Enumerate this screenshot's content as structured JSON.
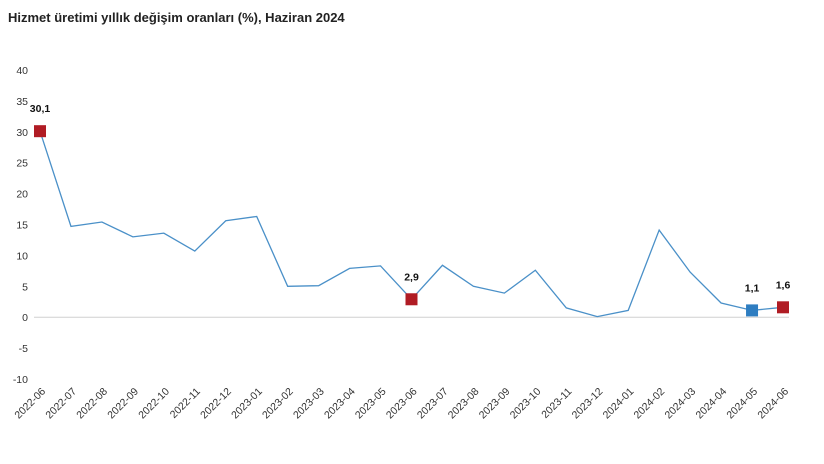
{
  "chart_data": {
    "type": "line",
    "title": "Hizmet üretimi yıllık değişim oranları (%), Haziran 2024",
    "xlabel": "",
    "ylabel": "",
    "ylim": [
      -10,
      40
    ],
    "yticks": [
      -10,
      -5,
      0,
      5,
      10,
      15,
      20,
      25,
      30,
      35,
      40
    ],
    "grid": false,
    "legend": "none",
    "colors": {
      "line": "#4a90c8",
      "marker_red": "#b01c24",
      "marker_blue": "#2e7dc1",
      "axis": "#d0d0d0"
    },
    "categories": [
      "2022-06",
      "2022-07",
      "2022-08",
      "2022-09",
      "2022-10",
      "2022-11",
      "2022-12",
      "2023-01",
      "2023-02",
      "2023-03",
      "2023-04",
      "2023-05",
      "2023-06",
      "2023-07",
      "2023-08",
      "2023-09",
      "2023-10",
      "2023-11",
      "2023-12",
      "2024-01",
      "2024-02",
      "2024-03",
      "2024-04",
      "2024-05",
      "2024-06"
    ],
    "series": [
      {
        "values": [
          30.1,
          14.7,
          15.4,
          13.0,
          13.6,
          10.7,
          15.6,
          16.3,
          5.0,
          5.1,
          7.9,
          8.3,
          2.9,
          8.4,
          5.0,
          3.9,
          7.6,
          1.5,
          0.1,
          1.1,
          14.1,
          7.3,
          2.3,
          1.1,
          1.6
        ]
      }
    ],
    "annotations": [
      {
        "index": 0,
        "label": "30,1",
        "marker": "red"
      },
      {
        "index": 12,
        "label": "2,9",
        "marker": "red"
      },
      {
        "index": 23,
        "label": "1,1",
        "marker": "blue"
      },
      {
        "index": 24,
        "label": "1,6",
        "marker": "red"
      }
    ]
  }
}
